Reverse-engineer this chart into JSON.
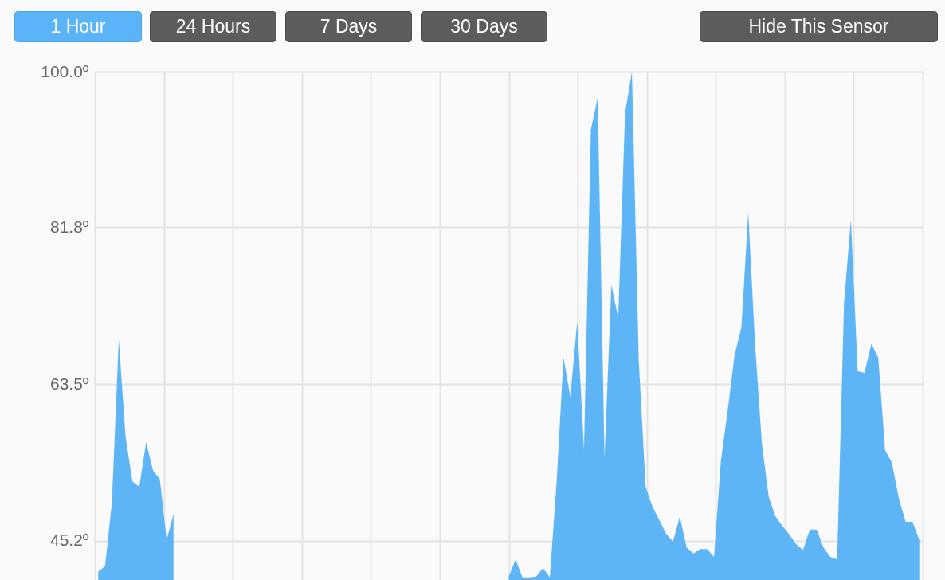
{
  "chart_data": {
    "type": "area",
    "annotations": [
      "1 Hour",
      "24 Hours",
      "7 Days",
      "30 Days",
      "Hide This Sensor"
    ],
    "categories": [
      null,
      null,
      null,
      null,
      null,
      null,
      null,
      null,
      null,
      null,
      null,
      null,
      null,
      null,
      null,
      null,
      null,
      null,
      null,
      null,
      null,
      null,
      null,
      null,
      null,
      null,
      null,
      null,
      null,
      null,
      null,
      null,
      null,
      null,
      null,
      null,
      null,
      null,
      null,
      null,
      null,
      null,
      null,
      null,
      null,
      null,
      null,
      null,
      null,
      null,
      null,
      null,
      null,
      null,
      null,
      null,
      null,
      null,
      null,
      null,
      null,
      null,
      null,
      null,
      null,
      null,
      null,
      null,
      null,
      null,
      null,
      null,
      null,
      null,
      null,
      null,
      null,
      null,
      null,
      null,
      null,
      null,
      null,
      null,
      null,
      null,
      null,
      null,
      null,
      null,
      null,
      null,
      null,
      null,
      null,
      null,
      null,
      null,
      null,
      null,
      null,
      null,
      null,
      null,
      null,
      null,
      null,
      null,
      null,
      null,
      null,
      null,
      null,
      null,
      null,
      null,
      null,
      null,
      null,
      null,
      null
    ],
    "values": [
      41.6,
      42.2,
      49.7,
      68.7,
      57.3,
      52.1,
      51.5,
      56.7,
      53.4,
      52.4,
      45.3,
      48.3,
      null,
      null,
      null,
      null,
      null,
      null,
      null,
      null,
      null,
      null,
      null,
      null,
      null,
      null,
      null,
      null,
      null,
      null,
      null,
      null,
      null,
      null,
      null,
      null,
      null,
      null,
      null,
      null,
      null,
      null,
      null,
      null,
      null,
      null,
      null,
      null,
      null,
      null,
      null,
      null,
      null,
      null,
      null,
      null,
      null,
      null,
      null,
      null,
      41.0,
      43.0,
      40.9,
      40.9,
      41.0,
      42.0,
      40.9,
      52.1,
      66.6,
      62.0,
      70.8,
      55.8,
      93.2,
      97.0,
      54.9,
      75.1,
      71.2,
      95.2,
      100.0,
      66.2,
      51.5,
      49.2,
      47.6,
      46.0,
      45.1,
      48.0,
      44.4,
      43.7,
      44.2,
      44.2,
      43.3,
      54.5,
      60.4,
      66.9,
      70.1,
      83.6,
      68.1,
      56.5,
      50.3,
      48.0,
      46.9,
      45.9,
      44.8,
      44.1,
      46.5,
      46.5,
      44.4,
      43.3,
      43.0,
      72.9,
      82.7,
      65.0,
      64.8,
      68.2,
      66.6,
      55.8,
      54.3,
      50.2,
      47.4,
      47.4,
      45.3
    ],
    "color": "#5db5f5",
    "ylim": [
      40.6,
      100
    ],
    "yticks": [
      {
        "value": 45.2,
        "label": "45.2º"
      },
      {
        "value": 63.5,
        "label": "63.5º"
      },
      {
        "value": 81.8,
        "label": "81.8º"
      },
      {
        "value": 100,
        "label": "100.0º"
      }
    ],
    "grid": true,
    "tick_labels": "y"
  }
}
